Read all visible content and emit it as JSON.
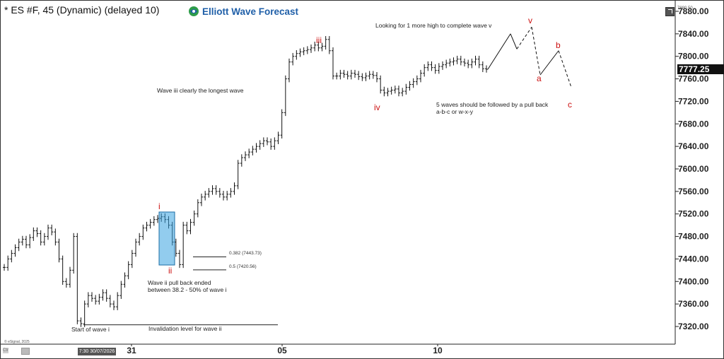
{
  "header": {
    "title": "* ES #F, 45 (Dynamic) (delayed 10)",
    "brand": "Elliott Wave Forecast",
    "brand_icon": "globe-icon",
    "top_right_value": "7880.50"
  },
  "price_box": "7777.25",
  "colors": {
    "wave_label": "#cc1111",
    "fib_box": "#39a3e0",
    "brand": "#1f5fa8",
    "bars": "#111111"
  },
  "annotations": {
    "looking": "Looking for 1 more high to complete wave v",
    "wave_iii": "Wave iii clearly the longest wave",
    "five_waves_1": "5 waves should be followed by a pull back",
    "five_waves_2": "a-b-c or w-x-y",
    "wave_ii_1": "Wave ii pull back ended",
    "wave_ii_2": "between 38.2 - 50% of wave i",
    "start": "Start of wave i",
    "invalidation": "Invalidation level for wave ii",
    "fib_382": "0.382 (7443.73)",
    "fib_5": "0.5 (7420.56)",
    "copyright": "© eSignal, 2025"
  },
  "wave_labels": {
    "i": "i",
    "ii": "ii",
    "iii": "iii",
    "iv": "iv",
    "v": "v",
    "a": "a",
    "b": "b",
    "c": "c"
  },
  "footer": {
    "time_box": "7:30 30/07/2026",
    "zoom": "Ctr"
  },
  "chart_data": {
    "type": "line",
    "ylim": [
      7290,
      7890
    ],
    "y_ticks": [
      7320,
      7360,
      7400,
      7440,
      7480,
      7520,
      7560,
      7600,
      7640,
      7680,
      7720,
      7760,
      7800,
      7840,
      7880
    ],
    "x_tick_labels": [
      "31",
      "05",
      "10"
    ],
    "series": [
      {
        "values": [
          7425,
          7440,
          7450,
          7460,
          7470,
          7475,
          7465,
          7478,
          7490,
          7485,
          7470,
          7480,
          7495,
          7488,
          7470,
          7440,
          7400,
          7395,
          7420,
          7480,
          7330,
          7325,
          7360,
          7375,
          7370,
          7365,
          7372,
          7380,
          7370,
          7360,
          7355,
          7375,
          7395,
          7410,
          7430,
          7450,
          7470,
          7480,
          7495,
          7500,
          7505,
          7510,
          7512,
          7515,
          7510,
          7500,
          7470,
          7450,
          7430,
          7500,
          7490,
          7505,
          7520,
          7540,
          7550,
          7555,
          7560,
          7565,
          7560,
          7555,
          7550,
          7555,
          7560,
          7570,
          7610,
          7620,
          7625,
          7630,
          7635,
          7640,
          7645,
          7650,
          7648,
          7640,
          7650,
          7660,
          7700,
          7760,
          7790,
          7800,
          7805,
          7808,
          7810,
          7812,
          7815,
          7820,
          7815,
          7818,
          7830,
          7810,
          7765,
          7765,
          7770,
          7768,
          7765,
          7770,
          7768,
          7764,
          7762,
          7765,
          7768,
          7766,
          7760,
          7740,
          7735,
          7738,
          7740,
          7742,
          7735,
          7738,
          7745,
          7750,
          7755,
          7760,
          7770,
          7780,
          7785,
          7780,
          7775,
          7782,
          7785,
          7788,
          7790,
          7792,
          7795,
          7790,
          7788,
          7785,
          7790,
          7795,
          7785,
          7778,
          7777
        ]
      },
      {
        "values": [
          7777,
          7840,
          7813,
          7852,
          7767,
          7810,
          7745
        ]
      }
    ],
    "fib_levels": [
      7443.73,
      7420.56
    ],
    "invalidation_level": 7323
  }
}
